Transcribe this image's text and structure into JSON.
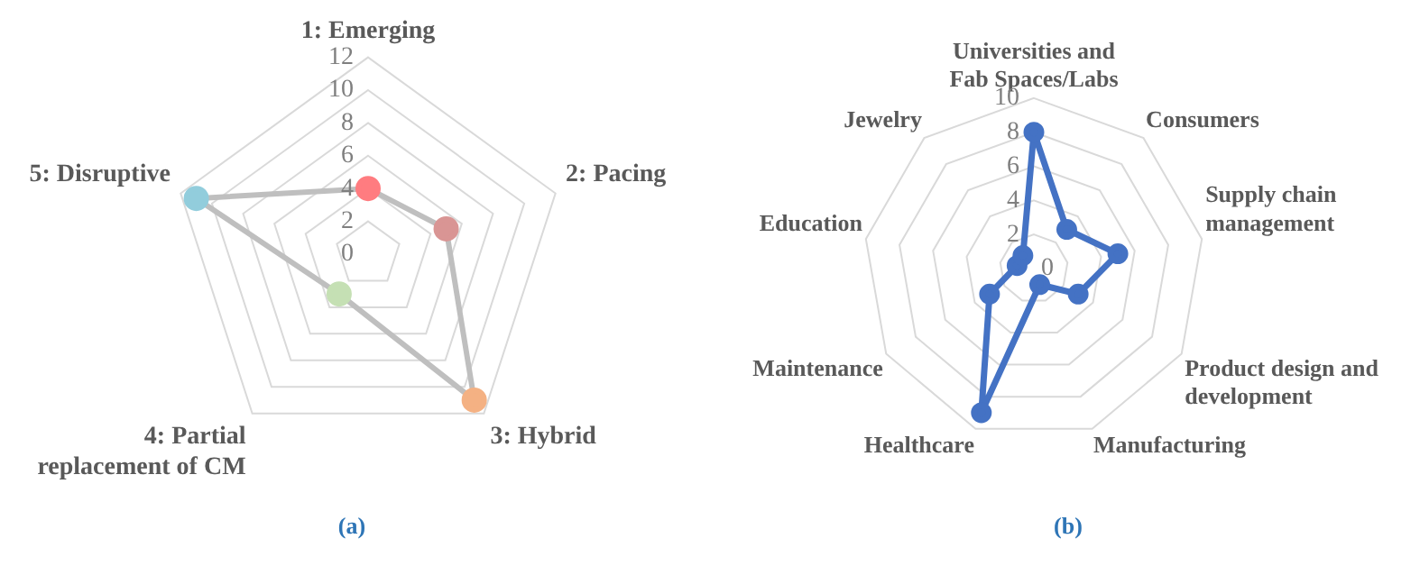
{
  "chart_data": [
    {
      "type": "radar",
      "categories": [
        "1: Emerging",
        "2: Pacing",
        "3: Hybrid",
        "4: Partial replacement of CM",
        "5: Disruptive"
      ],
      "values": [
        4,
        5,
        11,
        3,
        11
      ],
      "color": "#bfbfbf",
      "colors": [
        "#ff7c80",
        "#d99594",
        "#f4b183",
        "#c5e0b4",
        "#92cddc"
      ],
      "ylim": [
        0,
        12
      ],
      "yticks": [
        0,
        2,
        4,
        6,
        8,
        10,
        12
      ],
      "grid": true,
      "marker": "circle",
      "annotations": [
        "(a)"
      ]
    },
    {
      "type": "radar",
      "categories": [
        "Universities and Fab Spaces/Labs",
        "Consumers",
        "Supply chain management",
        "Product design and development",
        "Manufacturing",
        "Healthcare",
        "Maintenance",
        "Education",
        "Jewelry"
      ],
      "values": [
        8,
        3,
        5,
        3,
        1,
        9,
        3,
        1,
        1
      ],
      "color": "#4472c4",
      "ylim": [
        0,
        10
      ],
      "yticks": [
        0,
        2,
        4,
        6,
        8,
        10
      ],
      "grid": true,
      "marker": "circle",
      "annotations": [
        "(b)"
      ]
    }
  ]
}
